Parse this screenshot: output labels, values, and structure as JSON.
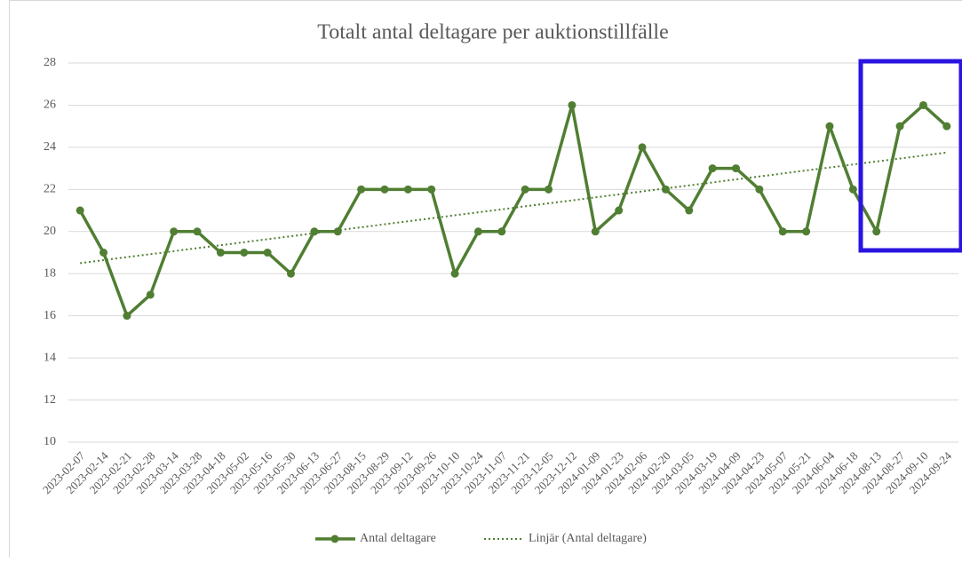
{
  "chart_data": {
    "type": "line",
    "title": "Totalt antal deltagare per auktionstillfälle",
    "categories": [
      "2023-02-07",
      "2023-02-14",
      "2023-02-21",
      "2023-02-28",
      "2023-03-14",
      "2023-03-28",
      "2023-04-18",
      "2023-05-02",
      "2023-05-16",
      "2023-05-30",
      "2023-06-13",
      "2023-06-27",
      "2023-08-15",
      "2023-08-29",
      "2023-09-12",
      "2023-09-26",
      "2023-10-10",
      "2023-10-24",
      "2023-11-07",
      "2023-11-21",
      "2023-12-05",
      "2023-12-12",
      "2024-01-09",
      "2024-01-23",
      "2024-02-06",
      "2024-02-20",
      "2024-03-05",
      "2024-03-19",
      "2024-04-09",
      "2024-04-23",
      "2024-05-07",
      "2024-05-21",
      "2024-06-04",
      "2024-06-18",
      "2024-08-13",
      "2024-08-27",
      "2024-09-10",
      "2024-09-24"
    ],
    "series": [
      {
        "name": "Antal deltagare",
        "color": "#507e32",
        "values": [
          21,
          19,
          16,
          17,
          20,
          20,
          19,
          19,
          19,
          18,
          20,
          20,
          22,
          22,
          22,
          22,
          18,
          20,
          20,
          22,
          22,
          26,
          20,
          21,
          24,
          22,
          21,
          23,
          23,
          22,
          20,
          20,
          25,
          22,
          20,
          25,
          26,
          25
        ]
      }
    ],
    "trendline": {
      "name": "Linjär (Antal deltagare)",
      "color": "#507e32",
      "values": [
        18.5,
        23.75
      ]
    },
    "ylim": [
      10,
      28
    ],
    "yticks": [
      10,
      12,
      14,
      16,
      18,
      20,
      22,
      24,
      26,
      28
    ],
    "grid": true,
    "legend": "bottom"
  }
}
